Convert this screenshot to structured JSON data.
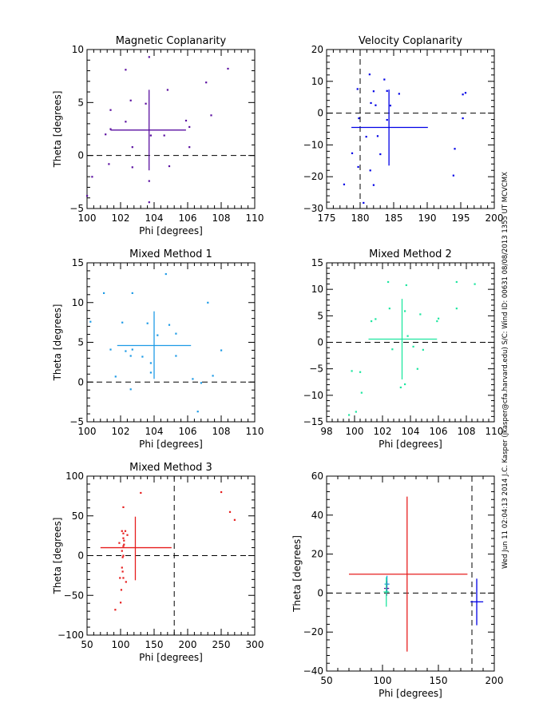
{
  "footer_text": "Wed Jun 11 02:04:13 2014   J.C. Kasper (jkasper@cfa.harvard.edu)   S/C: Wind ID: 00631 08/08/2013  1355 UT MCVCMX",
  "chart_data": [
    {
      "type": "scatter",
      "title": "Magnetic Coplanarity",
      "xlabel": "Phi [degrees]",
      "ylabel": "Theta [degrees]",
      "xlim": [
        100,
        110
      ],
      "ylim": [
        -5,
        10
      ],
      "xticks": [
        100,
        102,
        104,
        106,
        108,
        110
      ],
      "yticks": [
        -5,
        0,
        5,
        10
      ],
      "color": "#5a0fa0",
      "ref_lines": {
        "h": 0
      },
      "cross": {
        "x": 103.7,
        "y": 2.4,
        "xerr": [
          101.4,
          105.9
        ],
        "yerr": [
          -1.4,
          6.2
        ]
      },
      "points": [
        [
          103.7,
          9.3
        ],
        [
          102.3,
          8.1
        ],
        [
          108.4,
          8.2
        ],
        [
          107.1,
          6.9
        ],
        [
          104.8,
          6.2
        ],
        [
          102.6,
          5.2
        ],
        [
          103.5,
          4.9
        ],
        [
          101.4,
          4.3
        ],
        [
          107.4,
          3.8
        ],
        [
          105.9,
          3.3
        ],
        [
          102.3,
          3.2
        ],
        [
          106.1,
          2.7
        ],
        [
          101.4,
          2.5
        ],
        [
          101.1,
          2.0
        ],
        [
          103.8,
          1.9
        ],
        [
          104.6,
          1.9
        ],
        [
          102.7,
          0.8
        ],
        [
          106.1,
          0.8
        ],
        [
          101.3,
          -0.8
        ],
        [
          102.7,
          -1.1
        ],
        [
          104.9,
          -1.0
        ],
        [
          100.3,
          -2.0
        ],
        [
          103.7,
          -2.4
        ],
        [
          100.0,
          -3.8
        ],
        [
          103.7,
          -4.4
        ]
      ]
    },
    {
      "type": "scatter",
      "title": "Velocity Coplanarity",
      "xlabel": "",
      "ylabel": "",
      "xlim": [
        175,
        200
      ],
      "ylim": [
        -30,
        20
      ],
      "xticks": [
        175,
        180,
        185,
        190,
        195,
        200
      ],
      "yticks": [
        -30,
        -20,
        -10,
        0,
        10,
        20
      ],
      "color": "#0000e6",
      "ref_lines": {
        "h": 0,
        "v": 180
      },
      "cross": {
        "x": 184.3,
        "y": -4.5,
        "xerr": [
          178.7,
          190.1
        ],
        "yerr": [
          -16.5,
          7.4
        ]
      },
      "points": [
        [
          181.4,
          12.2
        ],
        [
          183.6,
          10.6
        ],
        [
          179.6,
          7.6
        ],
        [
          182.0,
          6.9
        ],
        [
          184.0,
          7.0
        ],
        [
          185.8,
          6.1
        ],
        [
          195.3,
          5.9
        ],
        [
          195.7,
          6.4
        ],
        [
          181.6,
          3.2
        ],
        [
          182.3,
          2.5
        ],
        [
          184.5,
          2.4
        ],
        [
          179.8,
          -1.6
        ],
        [
          184.0,
          -2.1
        ],
        [
          195.3,
          -1.6
        ],
        [
          180.9,
          -7.4
        ],
        [
          182.6,
          -7.2
        ],
        [
          178.8,
          -12.6
        ],
        [
          183.0,
          -12.9
        ],
        [
          194.1,
          -11.2
        ],
        [
          179.7,
          -16.9
        ],
        [
          181.5,
          -18.0
        ],
        [
          193.9,
          -19.6
        ],
        [
          177.6,
          -22.4
        ],
        [
          182.0,
          -22.6
        ],
        [
          180.5,
          -28.2
        ]
      ]
    },
    {
      "type": "scatter",
      "title": "Mixed Method 1",
      "xlabel": "Phi [degrees]",
      "ylabel": "Theta [degrees]",
      "xlim": [
        100,
        110
      ],
      "ylim": [
        -5,
        15
      ],
      "xticks": [
        100,
        102,
        104,
        106,
        108,
        110
      ],
      "yticks": [
        -5,
        0,
        5,
        10,
        15
      ],
      "color": "#1e9be6",
      "ref_lines": {
        "h": 0
      },
      "cross": {
        "x": 104.0,
        "y": 4.6,
        "xerr": [
          101.8,
          106.2
        ],
        "yerr": [
          0.4,
          8.9
        ]
      },
      "points": [
        [
          104.7,
          13.6
        ],
        [
          101.0,
          11.2
        ],
        [
          102.7,
          11.2
        ],
        [
          107.2,
          10.0
        ],
        [
          100.2,
          7.6
        ],
        [
          102.1,
          7.5
        ],
        [
          103.6,
          7.4
        ],
        [
          104.9,
          7.2
        ],
        [
          105.3,
          6.1
        ],
        [
          104.2,
          5.9
        ],
        [
          101.4,
          4.1
        ],
        [
          102.3,
          3.9
        ],
        [
          102.7,
          4.1
        ],
        [
          108.0,
          4.0
        ],
        [
          102.6,
          3.3
        ],
        [
          103.3,
          3.2
        ],
        [
          105.3,
          3.3
        ],
        [
          103.8,
          2.4
        ],
        [
          103.8,
          1.2
        ],
        [
          101.7,
          0.7
        ],
        [
          106.3,
          0.4
        ],
        [
          107.5,
          0.8
        ],
        [
          106.8,
          -0.1
        ],
        [
          102.6,
          -0.9
        ],
        [
          106.6,
          -3.7
        ]
      ]
    },
    {
      "type": "scatter",
      "title": "Mixed Method 2",
      "xlabel": "Phi [degrees]",
      "ylabel": "",
      "xlim": [
        98,
        110
      ],
      "ylim": [
        -15,
        15
      ],
      "xticks": [
        98,
        100,
        102,
        104,
        106,
        108,
        110
      ],
      "yticks": [
        -15,
        -10,
        -5,
        0,
        5,
        10,
        15
      ],
      "color": "#1ee6a0",
      "ref_lines": {
        "h": 0
      },
      "cross": {
        "x": 103.4,
        "y": 0.6,
        "xerr": [
          101.0,
          105.9
        ],
        "yerr": [
          -7.0,
          8.2
        ]
      },
      "points": [
        [
          102.4,
          11.4
        ],
        [
          103.7,
          10.8
        ],
        [
          107.3,
          11.4
        ],
        [
          108.6,
          11.0
        ],
        [
          102.5,
          6.4
        ],
        [
          103.6,
          5.9
        ],
        [
          104.7,
          5.3
        ],
        [
          107.3,
          6.4
        ],
        [
          101.2,
          4.0
        ],
        [
          101.5,
          4.4
        ],
        [
          105.9,
          4.0
        ],
        [
          106.0,
          4.5
        ],
        [
          103.8,
          1.2
        ],
        [
          102.7,
          -1.3
        ],
        [
          104.2,
          -0.8
        ],
        [
          104.9,
          -1.4
        ],
        [
          104.5,
          -5.0
        ],
        [
          99.8,
          -5.4
        ],
        [
          100.4,
          -5.6
        ],
        [
          103.3,
          -8.5
        ],
        [
          103.6,
          -7.9
        ],
        [
          100.5,
          -9.5
        ],
        [
          100.1,
          -13.1
        ],
        [
          99.6,
          -13.7
        ]
      ]
    },
    {
      "type": "scatter",
      "title": "Mixed Method 3",
      "xlabel": "Phi [degrees]",
      "ylabel": "Theta [degrees]",
      "xlim": [
        50,
        300
      ],
      "ylim": [
        -100,
        100
      ],
      "xticks": [
        50,
        100,
        150,
        200,
        250,
        300
      ],
      "yticks": [
        -100,
        -50,
        0,
        50,
        100
      ],
      "color": "#e61e1e",
      "ref_lines": {
        "h": 0,
        "v": 180
      },
      "cross": {
        "x": 122.0,
        "y": 10.0,
        "xerr": [
          70.0,
          176.0
        ],
        "yerr": [
          -31.0,
          49.0
        ]
      },
      "points": [
        [
          130,
          79
        ],
        [
          250,
          80
        ],
        [
          263,
          55
        ],
        [
          270,
          45
        ],
        [
          104,
          61
        ],
        [
          102,
          31
        ],
        [
          107,
          31
        ],
        [
          104,
          28
        ],
        [
          110,
          26
        ],
        [
          104,
          22
        ],
        [
          105,
          19
        ],
        [
          98,
          16
        ],
        [
          105,
          14
        ],
        [
          104,
          12
        ],
        [
          102,
          6
        ],
        [
          104,
          0
        ],
        [
          103,
          -2
        ],
        [
          102,
          -15
        ],
        [
          103,
          -20
        ],
        [
          99,
          -28
        ],
        [
          104,
          -28
        ],
        [
          108,
          -33
        ],
        [
          101,
          -43
        ],
        [
          100,
          -59
        ],
        [
          92,
          -68
        ]
      ]
    },
    {
      "type": "errorbar",
      "title": "",
      "xlabel": "Phi [degrees]",
      "ylabel": "Theta [degrees]",
      "xlim": [
        50,
        200
      ],
      "ylim": [
        -40,
        60
      ],
      "xticks": [
        50,
        100,
        150,
        200
      ],
      "yticks": [
        -40,
        -20,
        0,
        20,
        40,
        60
      ],
      "ref_lines": {
        "h": 0,
        "v": 180
      },
      "crosses": [
        {
          "name": "Mixed Method 3",
          "color": "#e61e1e",
          "x": 122.0,
          "y": 9.7,
          "xerr": [
            70.0,
            176.0
          ],
          "yerr": [
            -30.0,
            49.5
          ]
        },
        {
          "name": "Velocity Coplanarity",
          "color": "#0000e6",
          "x": 184.3,
          "y": -4.5,
          "xerr": [
            178.7,
            190.1
          ],
          "yerr": [
            -16.5,
            7.4
          ]
        },
        {
          "name": "Mixed Method 1",
          "color": "#1e9be6",
          "x": 104.0,
          "y": 4.6,
          "xerr": [
            101.8,
            106.2
          ],
          "yerr": [
            0.4,
            8.9
          ]
        },
        {
          "name": "Magnetic Coplanarity",
          "color": "#5a0fa0",
          "x": 103.7,
          "y": 2.4,
          "xerr": [
            101.4,
            105.9
          ],
          "yerr": [
            -1.4,
            6.2
          ]
        },
        {
          "name": "Mixed Method 2",
          "color": "#1ee6a0",
          "x": 103.4,
          "y": 0.6,
          "xerr": [
            101.0,
            105.9
          ],
          "yerr": [
            -7.0,
            8.2
          ]
        }
      ]
    }
  ]
}
